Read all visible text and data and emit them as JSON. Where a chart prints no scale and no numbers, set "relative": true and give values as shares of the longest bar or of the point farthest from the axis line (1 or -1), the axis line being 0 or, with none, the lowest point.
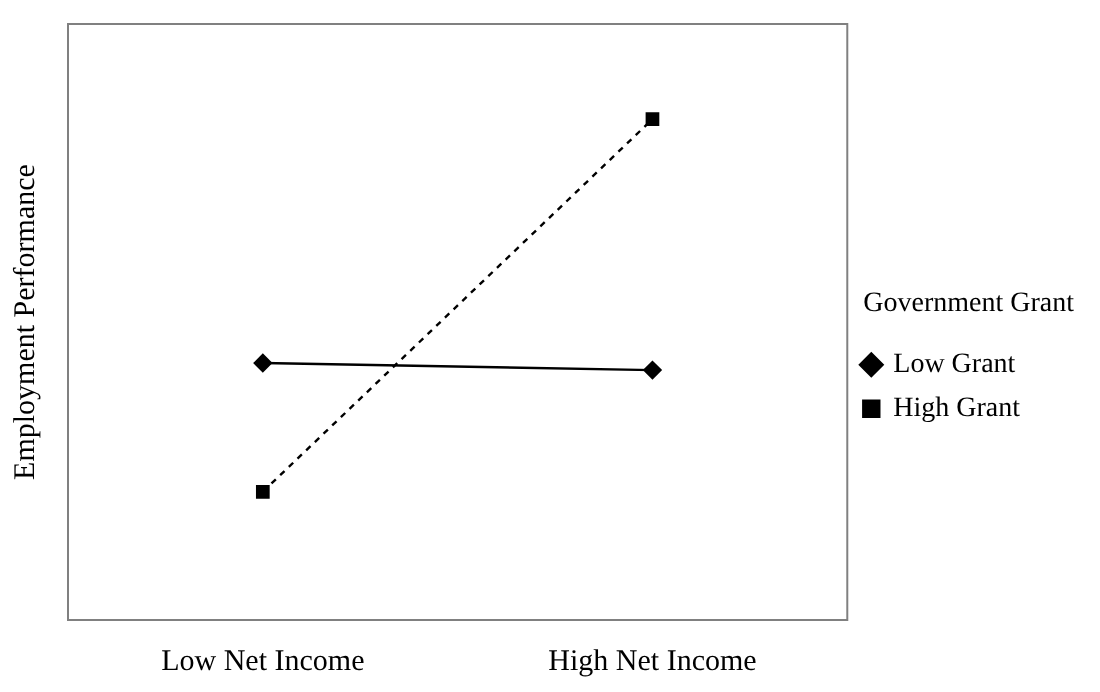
{
  "chart_data": {
    "type": "line",
    "relative": true,
    "ylabel": "Employment Performance",
    "legend_title": "Government Grant",
    "legend": "right",
    "grid": false,
    "categories": [
      "Low Net Income",
      "High Net Income"
    ],
    "series": [
      {
        "name": "Low Grant",
        "color": "#000000",
        "values": [
          0.513,
          0.499
        ],
        "marker": "diamond",
        "line_style": "solid"
      },
      {
        "name": "High Grant",
        "color": "#000000",
        "values": [
          0.256,
          1
        ],
        "marker": "square",
        "line_style": "dashed"
      }
    ]
  }
}
